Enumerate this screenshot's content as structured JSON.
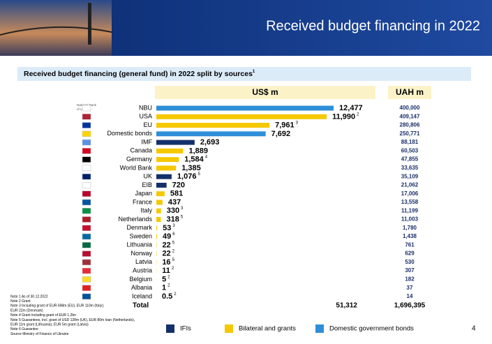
{
  "chart_data": {
    "type": "bar",
    "title": "Received budget financing in 2022",
    "subtitle": "Received budget financing (general fund) in 2022 split by sources",
    "subtitle_note": "1",
    "column_headers": [
      "US$ m",
      "UAH m"
    ],
    "logo_text": [
      "National Bank",
      "of Ukraine"
    ],
    "categories": [
      "NBU",
      "USA",
      "EU",
      "Domestic bonds",
      "IMF",
      "Canada",
      "Germany",
      "World Bank",
      "UK",
      "EIB",
      "Japan",
      "France",
      "Italy",
      "Netherlands",
      "Denmark",
      "Sweden",
      "Lithuania",
      "Norway",
      "Latvia",
      "Austria",
      "Belgium",
      "Albania",
      "Iceland"
    ],
    "values": [
      12477,
      11990,
      7961,
      7692,
      2693,
      1889,
      1584,
      1385,
      1076,
      720,
      581,
      437,
      330,
      318,
      53,
      49,
      22,
      22,
      16,
      11,
      5,
      1,
      0.5
    ],
    "value_labels": [
      "12,477",
      "11,990",
      "7,961",
      "7,692",
      "2,693",
      "1,889",
      "1,584",
      "1,385",
      "1,076",
      "720",
      "581",
      "437",
      "330",
      "318",
      "53",
      "49",
      "22",
      "22",
      "16",
      "11",
      "5",
      "1",
      "0.5"
    ],
    "value_notes": [
      null,
      "2",
      "3",
      null,
      null,
      null,
      "4",
      null,
      "5",
      null,
      null,
      null,
      "3",
      "5",
      "3",
      "6",
      "5",
      "2",
      "5",
      "2",
      "2",
      "2",
      "2"
    ],
    "colors": [
      "#2e8fd8",
      "#f5c800",
      "#f5c800",
      "#2e8fd8",
      "#14306a",
      "#f5c800",
      "#f5c800",
      "#f5c800",
      "#14306a",
      "#14306a",
      "#f5c800",
      "#f5c800",
      "#f5c800",
      "#f5c800",
      "#f5c800",
      "#f5c800",
      "#f5c800",
      "#f5c800",
      "#f5c800",
      "#f5c800",
      "#f5c800",
      "#f5c800",
      "#f5c800"
    ],
    "uah_values": [
      "400,000",
      "409,147",
      "280,806",
      "250,771",
      "88,181",
      "60,503",
      "47,855",
      "33,635",
      "35,109",
      "21,062",
      "17,006",
      "13,558",
      "11,199",
      "11,003",
      "1,780",
      "1,438",
      "761",
      "629",
      "530",
      "307",
      "182",
      "37",
      "14"
    ],
    "total_label": "Total",
    "total_usd": "51,312",
    "total_uah": "1,696,395",
    "legend": [
      {
        "name": "IFIs",
        "color": "#14306a"
      },
      {
        "name": "Bilateral and grants",
        "color": "#f5c800"
      },
      {
        "name": "Domestic government bonds",
        "color": "#2e8fd8"
      }
    ],
    "notes": [
      "Note 1 As of 30.12.2022",
      "Note 2 Grant",
      "Note 3 Including grant of EUR 698m (EU), EUR 110m (Italy);",
      "EUR 22m (Denmark)",
      "Note 4 Grant including grant of EUR 1.2bn",
      "Note 5 Guarantees, incl. grant of USD 128m (UK), EUR 80m loan (Netherlands),",
      "EUR 11m grant (Lithuania); EUR 5m grant (Latvia)",
      "Note 6 Guarantee",
      "Source Ministry of Finance of Ukraine"
    ],
    "page_number": "4"
  }
}
